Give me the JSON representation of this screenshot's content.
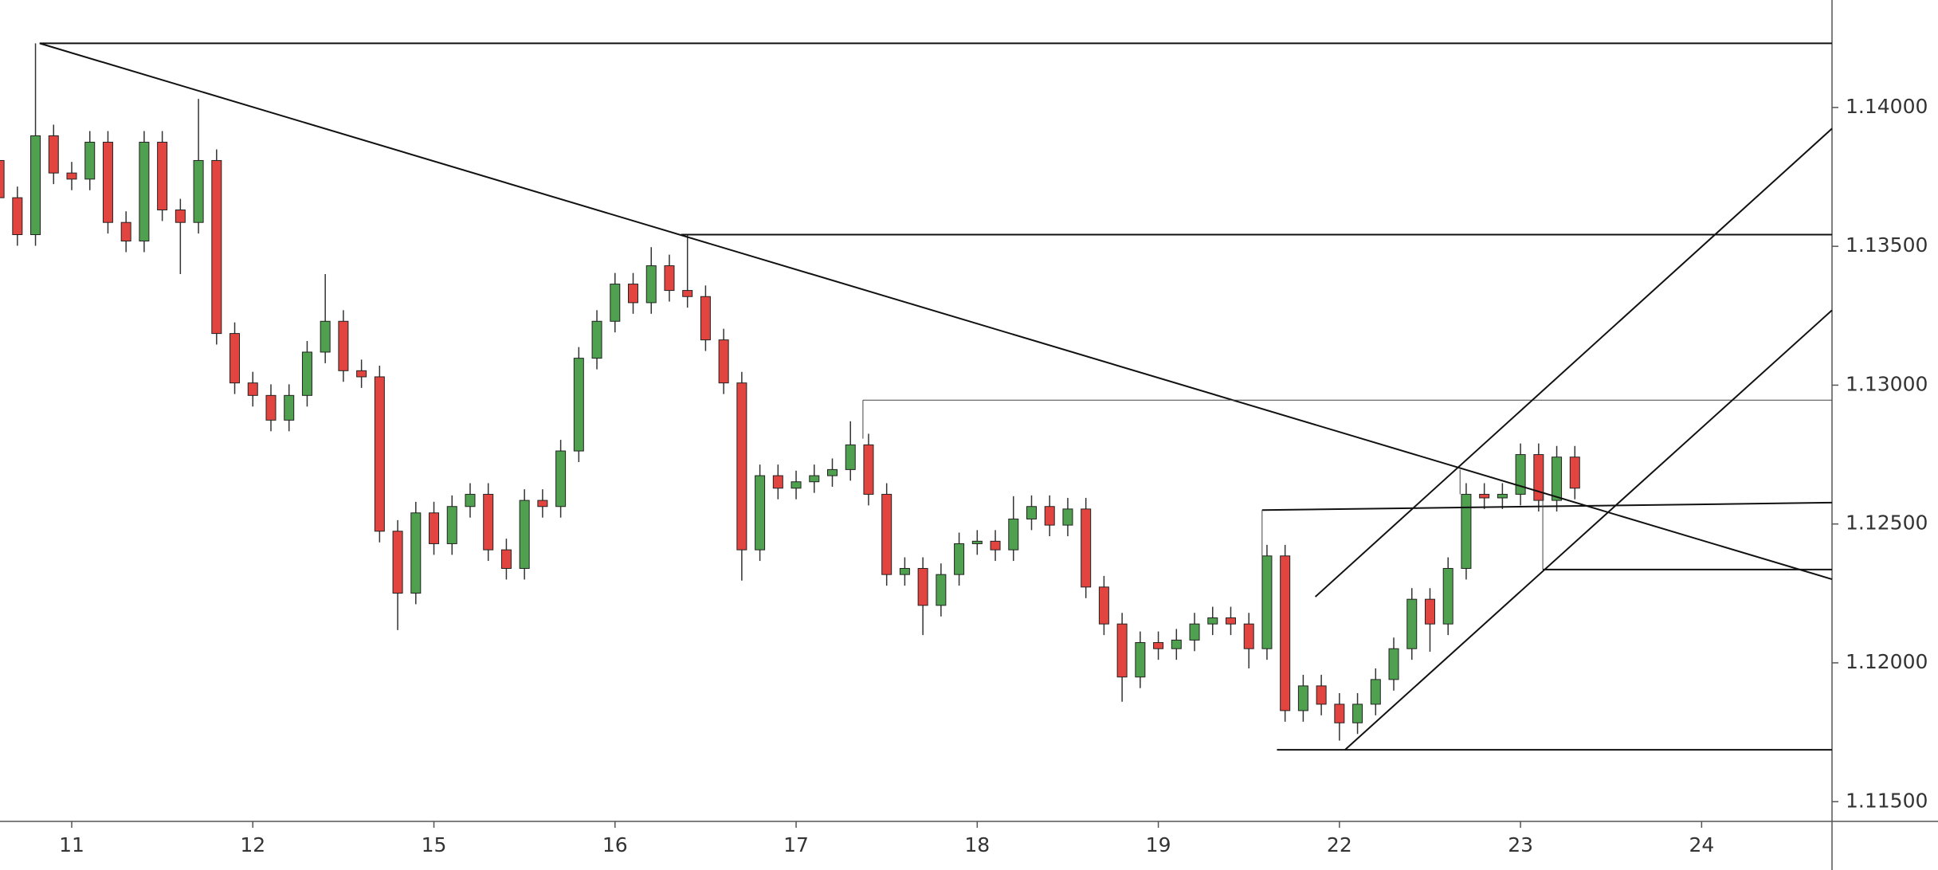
{
  "chart_data": {
    "type": "candlestick",
    "xlim": [
      -0.396,
      9.72
    ],
    "ylim": [
      1.11429,
      1.14387
    ],
    "xticks": [
      {
        "value": 0,
        "label": "11"
      },
      {
        "value": 1,
        "label": "12"
      },
      {
        "value": 2,
        "label": "15"
      },
      {
        "value": 3,
        "label": "16"
      },
      {
        "value": 4,
        "label": "17"
      },
      {
        "value": 5,
        "label": "18"
      },
      {
        "value": 6,
        "label": "19"
      },
      {
        "value": 7,
        "label": "22"
      },
      {
        "value": 8,
        "label": "23"
      },
      {
        "value": 9,
        "label": "24"
      }
    ],
    "yticks": [
      {
        "value": 1.115,
        "label": "1.11500"
      },
      {
        "value": 1.12,
        "label": "1.12000"
      },
      {
        "value": 1.125,
        "label": "1.12500"
      },
      {
        "value": 1.13,
        "label": "1.13000"
      },
      {
        "value": 1.135,
        "label": "1.13500"
      },
      {
        "value": 1.14,
        "label": "1.14000"
      }
    ],
    "up_color": "#4fa04f",
    "down_color": "#e2453f",
    "x": [
      -0.4,
      -0.3,
      -0.2,
      -0.1,
      0.0,
      0.1,
      0.2,
      0.3,
      0.4,
      0.5,
      0.6,
      0.7,
      0.8,
      0.9,
      1.0,
      1.1,
      1.2,
      1.3,
      1.4,
      1.5,
      1.6,
      1.7,
      1.8,
      1.9,
      2.0,
      2.1,
      2.2,
      2.3,
      2.4,
      2.5,
      2.6,
      2.7,
      2.8,
      2.9,
      3.0,
      3.1,
      3.2,
      3.3,
      3.4,
      3.5,
      3.6,
      3.7,
      3.8,
      3.9,
      4.0,
      4.1,
      4.2,
      4.3,
      4.4,
      4.5,
      4.6,
      4.7,
      4.8,
      4.9,
      5.0,
      5.1,
      5.2,
      5.3,
      5.4,
      5.5,
      5.6,
      5.7,
      5.8,
      5.9,
      6.0,
      6.1,
      6.2,
      6.3,
      6.4,
      6.5,
      6.6,
      6.7,
      6.8,
      6.9,
      7.0,
      7.1,
      7.2,
      7.3,
      7.4,
      7.5,
      7.6,
      7.7,
      7.8,
      7.9,
      8.0,
      8.1,
      8.2,
      8.3
    ],
    "open": [
      1.13809,
      1.13675,
      1.13542,
      1.13898,
      1.13764,
      1.13742,
      1.13875,
      1.13586,
      1.13519,
      1.13875,
      1.13631,
      1.13586,
      1.13809,
      1.13186,
      1.13008,
      1.12963,
      1.12874,
      1.12963,
      1.13119,
      1.1323,
      1.13052,
      1.1303,
      1.12474,
      1.12251,
      1.1254,
      1.12429,
      1.12563,
      1.12607,
      1.12407,
      1.1234,
      1.12585,
      1.12563,
      1.12763,
      1.13097,
      1.1323,
      1.13364,
      1.13297,
      1.1343,
      1.13341,
      1.13319,
      1.13163,
      1.13008,
      1.12407,
      1.12674,
      1.12629,
      1.12652,
      1.12674,
      1.12696,
      1.12785,
      1.12607,
      1.12318,
      1.1234,
      1.12207,
      1.12318,
      1.12429,
      1.12438,
      1.12407,
      1.12518,
      1.12563,
      1.12496,
      1.12554,
      1.12273,
      1.1214,
      1.11949,
      1.12073,
      1.12051,
      1.12082,
      1.1214,
      1.12162,
      1.1214,
      1.12051,
      1.12385,
      1.11828,
      1.11917,
      1.11851,
      1.11784,
      1.11851,
      1.1194,
      1.12051,
      1.12229,
      1.1214,
      1.1234,
      1.12607,
      1.12594,
      1.12607,
      1.1275,
      1.12585,
      1.12741
    ],
    "high": [
      1.13849,
      1.13715,
      1.14231,
      1.13938,
      1.13804,
      1.13915,
      1.13915,
      1.13626,
      1.13915,
      1.13915,
      1.13671,
      1.14031,
      1.13849,
      1.13226,
      1.13048,
      1.13003,
      1.13003,
      1.13159,
      1.134,
      1.1327,
      1.13092,
      1.1307,
      1.12514,
      1.1258,
      1.1258,
      1.12603,
      1.12647,
      1.12647,
      1.12447,
      1.12625,
      1.12625,
      1.12803,
      1.13137,
      1.1327,
      1.13404,
      1.13404,
      1.13497,
      1.1347,
      1.13542,
      1.13359,
      1.13203,
      1.13048,
      1.12714,
      1.12714,
      1.12692,
      1.12714,
      1.12736,
      1.1287,
      1.12825,
      1.12647,
      1.1238,
      1.1238,
      1.12358,
      1.12469,
      1.12478,
      1.12478,
      1.126,
      1.12603,
      1.12603,
      1.12594,
      1.12594,
      1.12313,
      1.1218,
      1.12113,
      1.12113,
      1.12122,
      1.1218,
      1.12202,
      1.12202,
      1.1218,
      1.12425,
      1.12425,
      1.11957,
      1.11957,
      1.11891,
      1.11891,
      1.1198,
      1.12091,
      1.12269,
      1.12269,
      1.1238,
      1.12647,
      1.12647,
      1.12647,
      1.1279,
      1.1279,
      1.12781,
      1.12781
    ],
    "low": [
      1.13186,
      1.13502,
      1.13502,
      1.13724,
      1.13702,
      1.13702,
      1.13546,
      1.13479,
      1.13479,
      1.13591,
      1.134,
      1.13546,
      1.13146,
      1.12968,
      1.12923,
      1.12834,
      1.12834,
      1.12923,
      1.13079,
      1.13012,
      1.1299,
      1.12434,
      1.12118,
      1.12211,
      1.12389,
      1.12389,
      1.12523,
      1.12367,
      1.123,
      1.123,
      1.12523,
      1.12523,
      1.12723,
      1.13057,
      1.1319,
      1.13257,
      1.13257,
      1.13301,
      1.13279,
      1.13123,
      1.12968,
      1.12296,
      1.12367,
      1.12589,
      1.12589,
      1.12612,
      1.12634,
      1.12656,
      1.12567,
      1.12278,
      1.12278,
      1.121,
      1.12167,
      1.12278,
      1.12389,
      1.12367,
      1.12367,
      1.12478,
      1.12456,
      1.12456,
      1.12233,
      1.121,
      1.1186,
      1.11909,
      1.12011,
      1.12011,
      1.12042,
      1.121,
      1.121,
      1.1198,
      1.12011,
      1.11788,
      1.11788,
      1.11811,
      1.1172,
      1.11744,
      1.11811,
      1.119,
      1.12011,
      1.1204,
      1.121,
      1.123,
      1.12554,
      1.12554,
      1.12567,
      1.12545,
      1.12545,
      1.12589
    ],
    "close": [
      1.13675,
      1.13542,
      1.13898,
      1.13764,
      1.13742,
      1.13875,
      1.13586,
      1.13519,
      1.13875,
      1.13631,
      1.13586,
      1.13809,
      1.13186,
      1.13008,
      1.12963,
      1.12874,
      1.12963,
      1.13119,
      1.1323,
      1.13052,
      1.1303,
      1.12474,
      1.12251,
      1.1254,
      1.12429,
      1.12563,
      1.12607,
      1.12407,
      1.1234,
      1.12585,
      1.12563,
      1.12763,
      1.13097,
      1.1323,
      1.13364,
      1.13297,
      1.1343,
      1.13341,
      1.13319,
      1.13163,
      1.13008,
      1.12407,
      1.12674,
      1.12629,
      1.12652,
      1.12674,
      1.12696,
      1.12785,
      1.12607,
      1.12318,
      1.1234,
      1.12207,
      1.12318,
      1.12429,
      1.12438,
      1.12407,
      1.12518,
      1.12563,
      1.12496,
      1.12554,
      1.12273,
      1.1214,
      1.11949,
      1.12073,
      1.12051,
      1.12082,
      1.1214,
      1.12162,
      1.1214,
      1.12051,
      1.12385,
      1.11828,
      1.11917,
      1.11851,
      1.11784,
      1.11851,
      1.1194,
      1.12051,
      1.12229,
      1.1214,
      1.1234,
      1.12607,
      1.12594,
      1.12607,
      1.1275,
      1.12585,
      1.12741,
      1.12629
    ],
    "drawings": [
      {
        "x1": -0.177,
        "y1": 1.14231,
        "x2": 9.72,
        "y2": 1.14231,
        "width": 2
      },
      {
        "x1": -0.177,
        "y1": 1.14231,
        "x2": 9.72,
        "y2": 1.12301,
        "width": 2
      },
      {
        "x1": 3.365,
        "y1": 1.13542,
        "x2": 9.72,
        "y2": 1.13542,
        "width": 2
      },
      {
        "x1": 4.369,
        "y1": 1.12946,
        "x2": 9.72,
        "y2": 1.12946,
        "width": 1
      },
      {
        "x1": 4.369,
        "y1": 1.12946,
        "x2": 4.369,
        "y2": 1.12807,
        "width": 1
      },
      {
        "x1": 6.573,
        "y1": 1.1255,
        "x2": 9.72,
        "y2": 1.12577,
        "width": 2
      },
      {
        "x1": 6.573,
        "y1": 1.1255,
        "x2": 6.573,
        "y2": 1.12385,
        "width": 1
      },
      {
        "x1": 6.655,
        "y1": 1.11687,
        "x2": 9.72,
        "y2": 1.11687,
        "width": 2
      },
      {
        "x1": 8.123,
        "y1": 1.12336,
        "x2": 9.72,
        "y2": 1.12336,
        "width": 2
      },
      {
        "x1": 8.123,
        "y1": 1.12336,
        "x2": 8.123,
        "y2": 1.12607,
        "width": 1
      },
      {
        "x1": 7.666,
        "y1": 1.12696,
        "x2": 7.666,
        "y2": 1.12607,
        "width": 1
      },
      {
        "x1": 7.031,
        "y1": 1.11687,
        "x2": 9.72,
        "y2": 1.1327,
        "width": 2
      },
      {
        "x1": 6.867,
        "y1": 1.12238,
        "x2": 9.72,
        "y2": 1.13924,
        "width": 2
      }
    ]
  }
}
